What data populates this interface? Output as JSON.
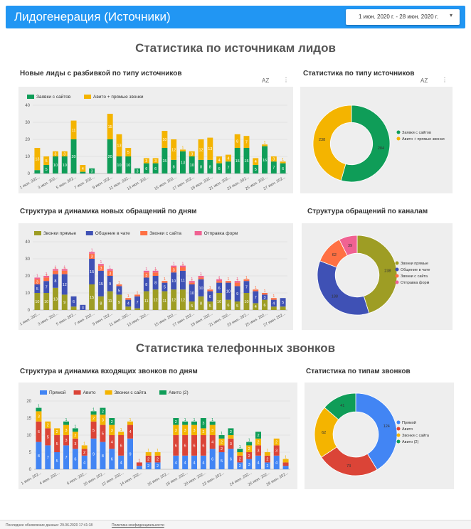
{
  "header": {
    "title": "Лидогенерация (Источники)",
    "date_range": "1 июн. 2020 г. - 28 июн. 2020 г."
  },
  "sections": {
    "leads_title": "Статистика по источникам лидов",
    "calls_title": "Статистика телефонных звонков"
  },
  "titles": {
    "c1": "Новые лиды с разбивкой по типу источников",
    "c2": "Статистика по типу источников",
    "c3": "Структура и динамика новых обращений по дням",
    "c4": "Структура обращений по каналам",
    "c5": "Структура и динамика входящих звонков по дням",
    "c6": "Статистика по типам звонков"
  },
  "toolbar": {
    "sort_icon_text": "AZ",
    "menu_icon_text": "⋮"
  },
  "footer": {
    "updated": "Последнее обновление данных: 29.06.2020 17:41:18",
    "privacy": "Политика конфиденциальности"
  },
  "chart_data": [
    {
      "id": "c1",
      "type": "bar",
      "stacked": true,
      "ylim": [
        0,
        40
      ],
      "yticks": [
        0,
        10,
        20,
        30,
        40
      ],
      "grid": true,
      "legend": "top-left",
      "categories": [
        "1 июн. 202...",
        "2",
        "3 июн. 202...",
        "4",
        "5 июн. 202...",
        "6",
        "7 июн. 202...",
        "8",
        "9 июн. 202...",
        "10",
        "11 июн. 202...",
        "12",
        "13 июн. 202...",
        "14",
        "15 июн. 202...",
        "16",
        "17 июн. 202...",
        "18",
        "19 июн. 202...",
        "20",
        "21 июн. 202...",
        "22",
        "23 июн. 202...",
        "24",
        "25 июн. 202...",
        "26",
        "27 июн. 202...",
        "28"
      ],
      "xlabels": [
        "1 июн. 202...",
        "3 июн. 202...",
        "5 июн. 202...",
        "7 июн. 202...",
        "9 июн. 202...",
        "11 июн. 202...",
        "13 июн. 202...",
        "15 июн. 202...",
        "17 июн. 202...",
        "19 июн. 202...",
        "21 июн. 202...",
        "23 июн. 202...",
        "25 июн. 202...",
        "27 июн. 202..."
      ],
      "series": [
        {
          "name": "Заявки с сайтов",
          "color": "#0f9d58",
          "values": [
            2,
            5,
            10,
            10,
            20,
            1,
            3,
            0,
            20,
            10,
            10,
            3,
            6,
            6,
            15,
            8,
            13,
            10,
            8,
            8,
            6,
            7,
            15,
            15,
            5,
            16,
            7,
            6
          ]
        },
        {
          "name": "Авито + прямые звонки",
          "color": "#f4b400",
          "values": [
            13,
            5,
            3,
            3,
            11,
            4,
            0,
            0,
            15,
            13,
            5,
            0,
            3,
            3,
            10,
            12,
            1,
            3,
            12,
            13,
            4,
            4,
            8,
            7,
            4,
            1,
            3,
            1
          ]
        }
      ]
    },
    {
      "id": "c2",
      "type": "pie",
      "donut": true,
      "legend": "right",
      "labels": [
        "Заявки с сайтов",
        "Авито + прямые звонки"
      ],
      "values": [
        284,
        238
      ],
      "colors": [
        "#0f9d58",
        "#f4b400"
      ]
    },
    {
      "id": "c3",
      "type": "bar",
      "stacked": true,
      "ylim": [
        0,
        40
      ],
      "yticks": [
        0,
        10,
        20,
        30,
        40
      ],
      "grid": true,
      "legend": "top",
      "xlabels": [
        "1 июн. 202...",
        "3 июн. 202...",
        "5 июн. 202...",
        "7 июн. 202...",
        "9 июн. 202...",
        "11 июн. 202...",
        "13 июн. 202...",
        "15 июн. 202...",
        "17 июн. 202...",
        "19 июн. 202...",
        "21 июн. 202...",
        "23 июн. 202...",
        "25 июн. 202...",
        "27 июн. 202..."
      ],
      "series": [
        {
          "name": "Звонки прямые",
          "color": "#9e9d24",
          "values": [
            10,
            10,
            13,
            9,
            2,
            0,
            15,
            8,
            11,
            9,
            2,
            1,
            11,
            12,
            11,
            12,
            12,
            5,
            8,
            5,
            10,
            6,
            5,
            10,
            4,
            6,
            2,
            2
          ]
        },
        {
          "name": "Общение в чате",
          "color": "#3f51b5",
          "values": [
            5,
            7,
            8,
            12,
            6,
            3,
            15,
            15,
            9,
            5,
            4,
            7,
            8,
            8,
            5,
            10,
            11,
            10,
            10,
            6,
            6,
            10,
            9,
            7,
            7,
            3,
            4,
            5
          ]
        },
        {
          "name": "Звонки с сайта",
          "color": "#ff7043",
          "values": [
            3,
            2,
            2,
            2,
            0,
            0,
            3,
            3,
            3,
            1,
            1,
            1,
            3,
            2,
            1,
            3,
            2,
            1,
            1,
            1,
            1,
            1,
            2,
            1,
            1,
            1,
            1,
            0
          ]
        },
        {
          "name": "Отправка форм",
          "color": "#f06292",
          "values": [
            1,
            1,
            1,
            1,
            0,
            0,
            1,
            1,
            1,
            0,
            0,
            0,
            1,
            1,
            0,
            1,
            1,
            1,
            1,
            0,
            1,
            0,
            1,
            0,
            0,
            0,
            0,
            0
          ]
        }
      ]
    },
    {
      "id": "c4",
      "type": "pie",
      "donut": true,
      "legend": "right",
      "labels": [
        "Звонки прямые",
        "Общение в чате",
        "Звонки с сайта",
        "Отправка форм"
      ],
      "values": [
        238,
        188,
        62,
        39
      ],
      "colors": [
        "#9e9d24",
        "#3f51b5",
        "#ff7043",
        "#f06292"
      ]
    },
    {
      "id": "c5",
      "type": "bar",
      "stacked": true,
      "ylim": [
        0,
        20
      ],
      "yticks": [
        0,
        5,
        10,
        15,
        20
      ],
      "grid": true,
      "legend": "top",
      "xlabels": [
        "1 июн. 202...",
        "4 июн. 202...",
        "6 июн. 202...",
        "10 июн. 202...",
        "12 июн. 202...",
        "14 июн. 202...",
        "16 июн. 202...",
        "18 июн. 202...",
        "20 июн. 202...",
        "22 июн. 202...",
        "24 июн. 202...",
        "26 июн. 202...",
        "28 июн. 202..."
      ],
      "series": [
        {
          "name": "Прямой",
          "color": "#4285f4",
          "values": [
            8,
            7,
            5,
            7,
            6,
            4,
            9,
            8,
            6,
            4,
            9,
            1,
            2,
            2,
            0,
            4,
            4,
            4,
            4,
            6,
            5,
            6,
            2,
            3,
            4,
            2,
            4,
            1
          ]
        },
        {
          "name": "Авито",
          "color": "#db4437",
          "values": [
            6,
            5,
            5,
            3,
            3,
            2,
            5,
            5,
            4,
            6,
            4,
            1,
            2,
            2,
            0,
            6,
            6,
            6,
            6,
            4,
            2,
            3,
            2,
            2,
            3,
            2,
            3,
            1
          ]
        },
        {
          "name": "Звонки с сайта",
          "color": "#f4b400",
          "values": [
            3,
            2,
            2,
            3,
            2,
            1,
            2,
            3,
            3,
            1,
            1,
            0,
            1,
            1,
            0,
            3,
            3,
            3,
            2,
            3,
            2,
            1,
            1,
            2,
            2,
            1,
            2,
            1
          ]
        },
        {
          "name": "Авито (2)",
          "color": "#0f9d58",
          "values": [
            1,
            0,
            0,
            1,
            1,
            0,
            1,
            2,
            2,
            0,
            0,
            0,
            0,
            0,
            0,
            2,
            1,
            1,
            3,
            1,
            1,
            2,
            1,
            1,
            2,
            0,
            0,
            0
          ]
        }
      ]
    },
    {
      "id": "c6",
      "type": "pie",
      "donut": true,
      "legend": "right",
      "labels": [
        "Прямой",
        "Авито",
        "Звонки с сайта",
        "Авито (2)"
      ],
      "values": [
        124,
        73,
        62,
        41
      ],
      "colors": [
        "#4285f4",
        "#db4437",
        "#f4b400",
        "#0f9d58"
      ]
    }
  ]
}
